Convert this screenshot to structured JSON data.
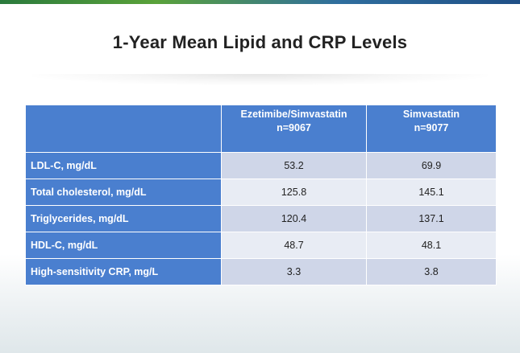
{
  "slide": {
    "title": "1-Year Mean Lipid and CRP Levels"
  },
  "table": {
    "header": {
      "col0": "",
      "col1_line1": "Ezetimibe/Simvastatin",
      "col1_line2": "n=9067",
      "col2_line1": "Simvastatin",
      "col2_line2": "n=9077"
    },
    "rows": [
      {
        "label": "LDL-C, mg/dL",
        "ezetimibe_simvastatin": "53.2",
        "simvastatin": "69.9"
      },
      {
        "label": "Total cholesterol, mg/dL",
        "ezetimibe_simvastatin": "125.8",
        "simvastatin": "145.1"
      },
      {
        "label": "Triglycerides, mg/dL",
        "ezetimibe_simvastatin": "120.4",
        "simvastatin": "137.1"
      },
      {
        "label": "HDL-C, mg/dL",
        "ezetimibe_simvastatin": "48.7",
        "simvastatin": "48.1"
      },
      {
        "label": "High-sensitivity CRP, mg/L",
        "ezetimibe_simvastatin": "3.3",
        "simvastatin": "3.8"
      }
    ]
  },
  "colors": {
    "header_blue": "#4a7fcf",
    "row_band_dark": "#cfd6e8",
    "row_band_light": "#e8ecf4"
  }
}
